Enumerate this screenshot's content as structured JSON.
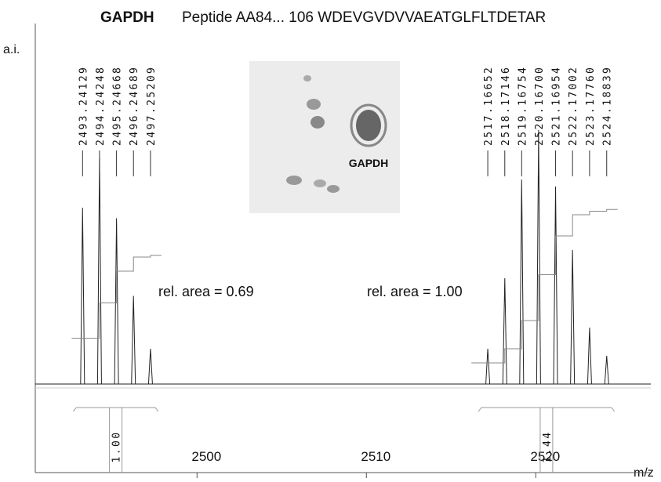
{
  "chart_data": {
    "type": "spectrum",
    "title": "GAPDH",
    "subtitle": "Peptide AA84... 106 WDEVGVDVVAEATGLFLTDETAR",
    "xlabel": "m/z",
    "ylabel": "a.i.",
    "inset_label": "GAPDH",
    "color": "#222222",
    "integral_color": "#888888",
    "xlim": [
      2490.45,
      2526.7
    ],
    "ylim": [
      0,
      100
    ],
    "xticks": [
      2500,
      2510,
      2520
    ],
    "x": [
      2493.24129,
      2494.24248,
      2495.24668,
      2496.24689,
      2497.25209,
      2517.16652,
      2518.17146,
      2519.16754,
      2520.167,
      2521.16954,
      2522.17002,
      2523.1776,
      2524.18839
    ],
    "x_labels": [
      "2493.24129",
      "2494.24248",
      "2495.24668",
      "2496.24689",
      "2497.25209",
      "2517.16652",
      "2518.17146",
      "2519.16754",
      "2520.16700",
      "2521.16954",
      "2522.17002",
      "2523.17760",
      "2524.18839"
    ],
    "values": [
      50,
      64,
      47,
      25,
      10,
      10,
      30,
      58,
      72,
      56,
      38,
      16,
      8
    ],
    "integrals": [
      {
        "x": [
          2492.6,
          2493.24129,
          2494.24248,
          2495.24668,
          2496.24689,
          2497.25209
        ],
        "values": [
          13,
          13,
          23,
          32,
          36,
          36.5
        ]
      },
      {
        "x": [
          2516.2,
          2517.16652,
          2518.17146,
          2519.16754,
          2520.167,
          2521.16954,
          2522.17002,
          2523.1776,
          2524.18839
        ],
        "values": [
          6,
          6,
          10,
          18,
          31,
          42,
          48,
          49,
          49.5
        ]
      }
    ],
    "annotations": [
      "rel. area = 0.69",
      "rel. area = 1.00"
    ],
    "ratios": [
      "1.00",
      "1.44"
    ]
  }
}
